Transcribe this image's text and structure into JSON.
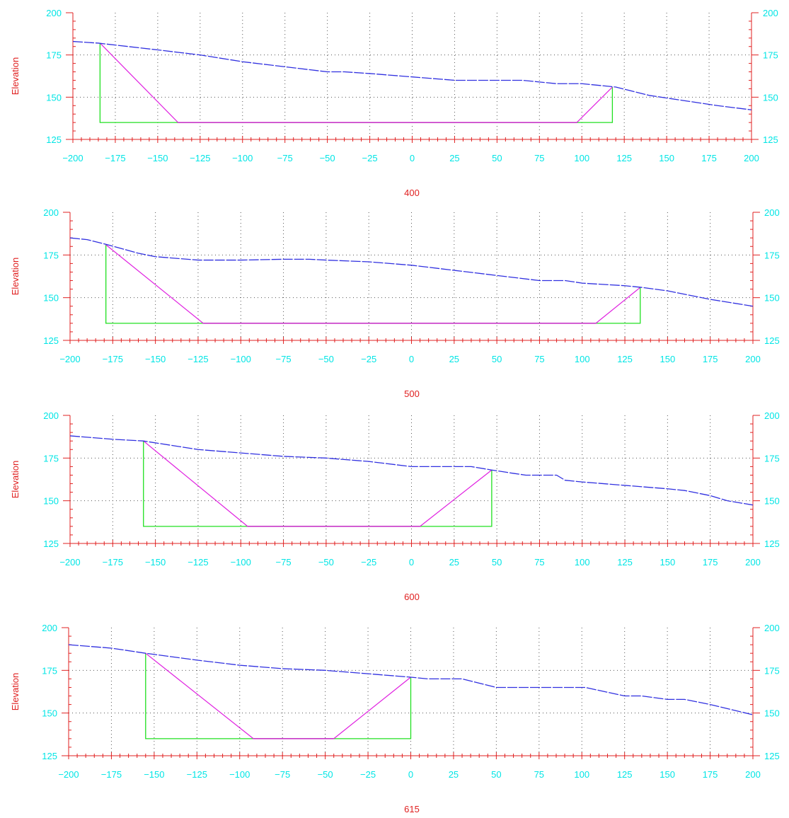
{
  "colors": {
    "background": "#ffffff",
    "axis_text": "#00e5e5",
    "axis_red": "#e02020",
    "grid": "#555555",
    "ground": "#3030e0",
    "cut_slope": "#e020e0",
    "boundary": "#20e020",
    "base": "#707070"
  },
  "chart_data": [
    {
      "type": "line",
      "title": "400",
      "ylabel": "Elevation",
      "xlabel": "",
      "xlim": [
        -200,
        200
      ],
      "ylim": [
        125,
        200
      ],
      "xticks": [
        -200,
        -175,
        -150,
        -125,
        -100,
        -75,
        -50,
        -25,
        0,
        25,
        50,
        75,
        100,
        125,
        150,
        175,
        200
      ],
      "yticks": [
        125,
        150,
        175,
        200
      ],
      "grid": true,
      "ground": {
        "x": [
          -200,
          -185,
          -150,
          -125,
          -100,
          -75,
          -50,
          -40,
          -25,
          0,
          25,
          50,
          65,
          75,
          85,
          100,
          120,
          140,
          160,
          180,
          200
        ],
        "y": [
          183,
          182,
          178,
          175,
          171,
          168,
          165,
          165,
          164,
          162,
          160,
          160,
          160,
          159,
          158,
          158,
          156,
          151,
          148,
          145,
          142.5
        ]
      },
      "cut_slope": {
        "x": [
          -184,
          -138,
          97,
          118
        ],
        "y": [
          182,
          135,
          135,
          156
        ]
      },
      "boundary": {
        "x": [
          -184,
          -184,
          118,
          118
        ],
        "y": [
          182,
          135,
          135,
          156
        ]
      },
      "base": {
        "x": [
          -138,
          97
        ],
        "y": [
          135,
          135
        ]
      }
    },
    {
      "type": "line",
      "title": "500",
      "ylabel": "Elevation",
      "xlabel": "",
      "xlim": [
        -200,
        200
      ],
      "ylim": [
        125,
        200
      ],
      "xticks": [
        -200,
        -175,
        -150,
        -125,
        -100,
        -75,
        -50,
        -25,
        0,
        25,
        50,
        75,
        100,
        125,
        150,
        175,
        200
      ],
      "yticks": [
        125,
        150,
        175,
        200
      ],
      "grid": true,
      "ground": {
        "x": [
          -200,
          -190,
          -178,
          -160,
          -150,
          -125,
          -100,
          -75,
          -60,
          -50,
          -25,
          0,
          25,
          50,
          75,
          90,
          100,
          125,
          135,
          150,
          175,
          200
        ],
        "y": [
          185,
          184,
          181,
          176,
          174,
          172,
          172,
          172.5,
          172.5,
          172,
          171,
          169,
          166,
          163,
          160,
          160,
          158.5,
          157,
          156,
          154,
          149,
          145
        ]
      },
      "cut_slope": {
        "x": [
          -179,
          -122,
          108,
          134
        ],
        "y": [
          181,
          135,
          135,
          156
        ]
      },
      "boundary": {
        "x": [
          -179,
          -179,
          134,
          134
        ],
        "y": [
          181,
          135,
          135,
          156
        ]
      },
      "base": {
        "x": [
          -122,
          108
        ],
        "y": [
          135,
          135
        ]
      }
    },
    {
      "type": "line",
      "title": "600",
      "ylabel": "Elevation",
      "xlabel": "",
      "xlim": [
        -200,
        200
      ],
      "ylim": [
        125,
        200
      ],
      "xticks": [
        -200,
        -175,
        -150,
        -125,
        -100,
        -75,
        -50,
        -25,
        0,
        25,
        50,
        75,
        100,
        125,
        150,
        175,
        200
      ],
      "yticks": [
        125,
        150,
        175,
        200
      ],
      "grid": true,
      "ground": {
        "x": [
          -200,
          -175,
          -157,
          -125,
          -100,
          -75,
          -50,
          -25,
          0,
          5,
          35,
          47,
          60,
          67,
          85,
          90,
          100,
          125,
          150,
          160,
          175,
          185,
          200
        ],
        "y": [
          188,
          186,
          185,
          180,
          178,
          176,
          175,
          173,
          170,
          170,
          170,
          168,
          166,
          165,
          165,
          162,
          161,
          159,
          157,
          156,
          153,
          150,
          147.5
        ]
      },
      "cut_slope": {
        "x": [
          -157,
          -96,
          5,
          47
        ],
        "y": [
          185,
          135,
          135,
          168
        ]
      },
      "boundary": {
        "x": [
          -157,
          -157,
          47,
          47
        ],
        "y": [
          185,
          135,
          135,
          168
        ]
      },
      "base": {
        "x": [
          -96,
          5
        ],
        "y": [
          135,
          135
        ]
      }
    },
    {
      "type": "line",
      "title": "615",
      "ylabel": "Elevation",
      "xlabel": "",
      "xlim": [
        -200,
        200
      ],
      "ylim": [
        125,
        200
      ],
      "xticks": [
        -200,
        -175,
        -150,
        -125,
        -100,
        -75,
        -50,
        -25,
        0,
        25,
        50,
        75,
        100,
        125,
        150,
        175,
        200
      ],
      "yticks": [
        125,
        150,
        175,
        200
      ],
      "grid": true,
      "ground": {
        "x": [
          -200,
          -175,
          -155,
          -125,
          -100,
          -75,
          -50,
          -25,
          0,
          10,
          30,
          50,
          75,
          102,
          125,
          135,
          150,
          160,
          175,
          200
        ],
        "y": [
          190,
          188,
          185,
          181,
          178,
          176,
          175,
          173,
          171,
          170,
          170,
          165,
          165,
          165,
          160,
          160,
          158,
          158,
          155,
          149
        ]
      },
      "cut_slope": {
        "x": [
          -155,
          -92,
          -45,
          0
        ],
        "y": [
          185,
          135,
          135,
          171
        ]
      },
      "boundary": {
        "x": [
          -155,
          -155,
          0,
          0
        ],
        "y": [
          185,
          135,
          135,
          171
        ]
      },
      "base": {
        "x": [
          -92,
          -45
        ],
        "y": [
          135,
          135
        ]
      }
    }
  ]
}
